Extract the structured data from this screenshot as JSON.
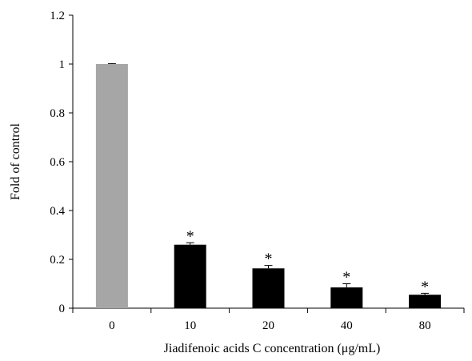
{
  "chart_data": {
    "type": "bar",
    "categories": [
      "0",
      "10",
      "20",
      "40",
      "80"
    ],
    "values": [
      1.0,
      0.26,
      0.163,
      0.085,
      0.055
    ],
    "errors": [
      0.002,
      0.008,
      0.012,
      0.015,
      0.006
    ],
    "significance": [
      "",
      "*",
      "*",
      "*",
      "*"
    ],
    "bar_colors": [
      "#a6a6a6",
      "#000000",
      "#000000",
      "#000000",
      "#000000"
    ],
    "title": "",
    "xlabel": "Jiadifenoic acids C concentration (μg/mL)",
    "ylabel": "Fold  of  control",
    "ylim": [
      0,
      1.2
    ],
    "yticks": [
      "0",
      "0.2",
      "0.4",
      "0.6",
      "0.8",
      "1",
      "1.2"
    ],
    "grid": false,
    "legend": "none"
  }
}
